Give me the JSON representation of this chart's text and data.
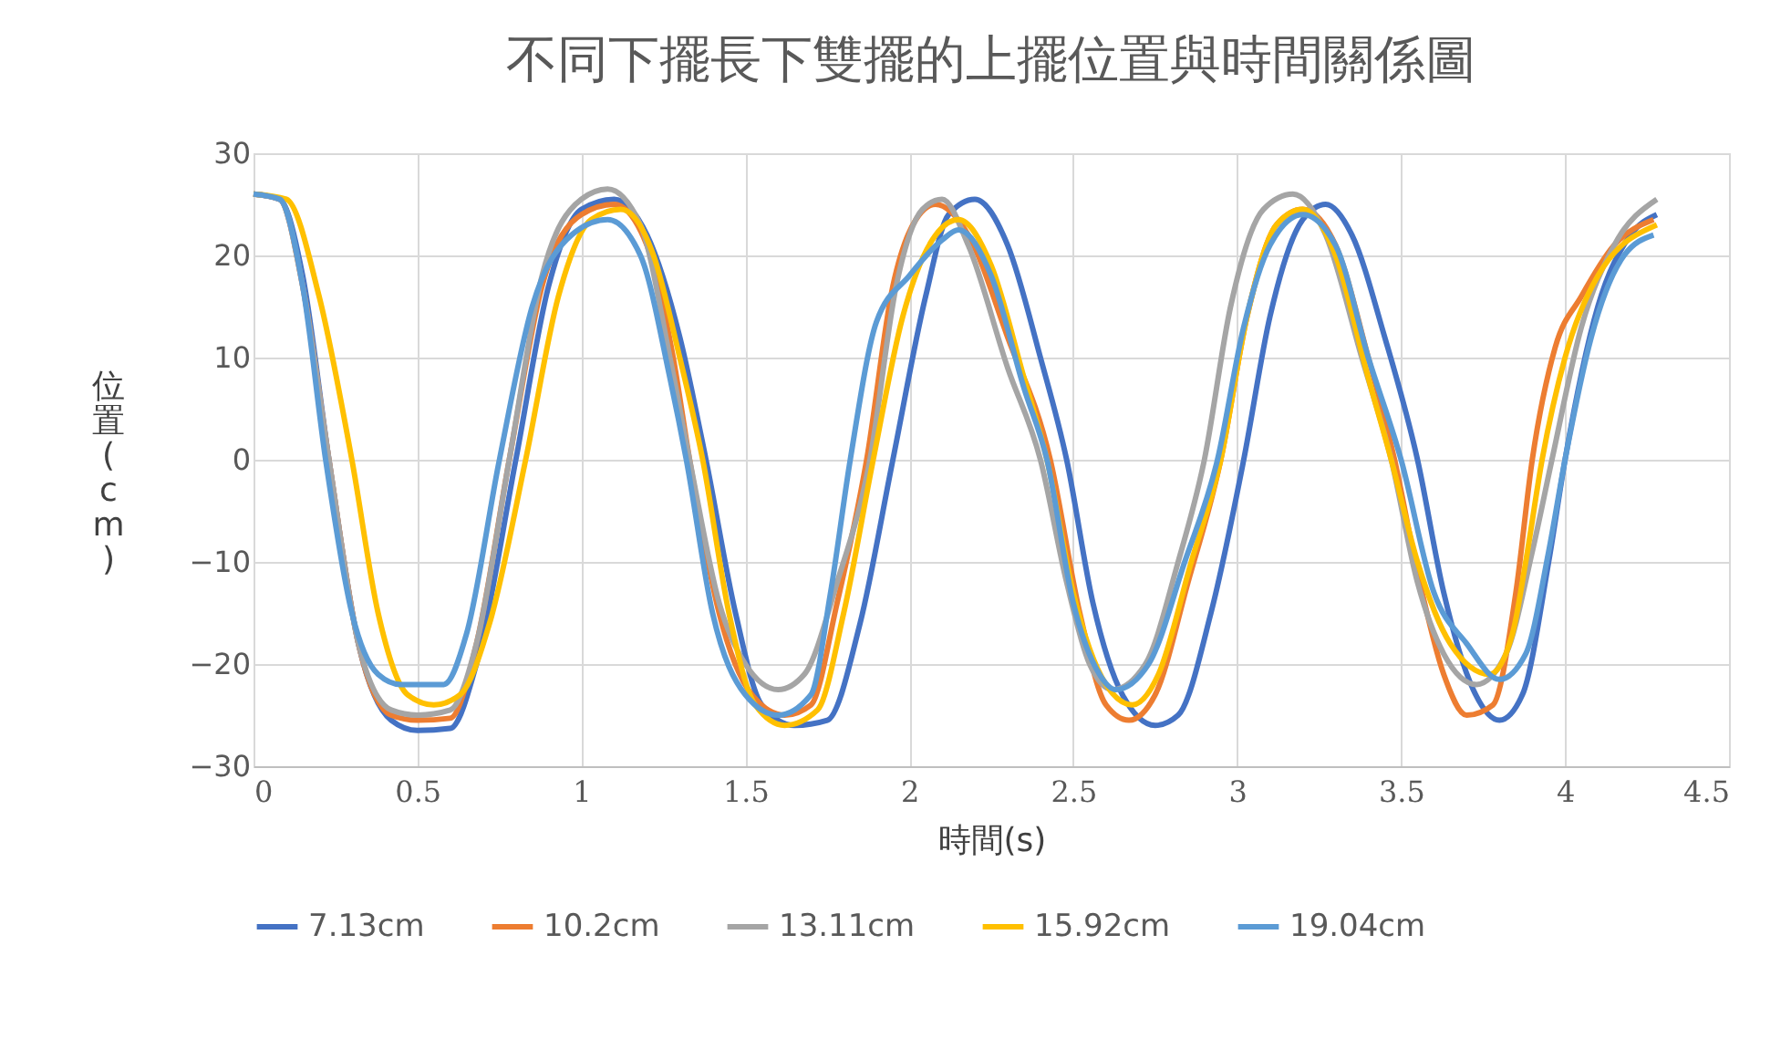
{
  "chart_data": {
    "type": "line",
    "title": "不同下擺長下雙擺的上擺位置與時間關係圖",
    "xlabel": "時間(s)",
    "ylabel": "位置(cm)",
    "xlim": [
      0,
      4.5
    ],
    "xticks": [
      0,
      0.5,
      1,
      1.5,
      2,
      2.5,
      3,
      3.5,
      4,
      4.5
    ],
    "ylim": [
      -30,
      30
    ],
    "yticks": [
      -30,
      -20,
      -10,
      0,
      10,
      20,
      30
    ],
    "grid": true,
    "legend": "bottom",
    "series": [
      {
        "name": "7.13cm",
        "color": "#4472c4",
        "x": [
          0,
          0.08,
          0.15,
          0.23,
          0.32,
          0.42,
          0.5,
          0.6,
          0.68,
          0.8,
          0.9,
          1.0,
          1.1,
          1.2,
          1.3,
          1.38,
          1.47,
          1.55,
          1.65,
          1.75,
          1.85,
          1.95,
          2.05,
          2.12,
          2.2,
          2.3,
          2.4,
          2.48,
          2.56,
          2.65,
          2.75,
          2.82,
          2.92,
          3.02,
          3.1,
          3.2,
          3.27,
          3.35,
          3.45,
          3.55,
          3.63,
          3.72,
          3.8,
          3.87,
          3.95,
          4.0,
          4.1,
          4.2,
          4.28
        ],
        "values": [
          26,
          25.5,
          18,
          0,
          -18,
          -25.5,
          -26.5,
          -26.3,
          -20,
          0,
          17,
          24.5,
          25.5,
          22,
          12,
          0,
          -15,
          -24,
          -26,
          -25.5,
          -16,
          0,
          16,
          24,
          25.5,
          21,
          10,
          0,
          -14,
          -23,
          -26,
          -25,
          -15,
          0,
          14,
          23.5,
          25,
          22,
          12,
          0,
          -13,
          -22.5,
          -25.5,
          -23,
          -10,
          0,
          15,
          22,
          24
        ]
      },
      {
        "name": "10.2cm",
        "color": "#ed7d31",
        "x": [
          0,
          0.08,
          0.15,
          0.23,
          0.32,
          0.42,
          0.5,
          0.6,
          0.68,
          0.78,
          0.88,
          1.0,
          1.1,
          1.2,
          1.28,
          1.33,
          1.42,
          1.52,
          1.62,
          1.7,
          1.78,
          1.87,
          1.95,
          2.02,
          2.08,
          2.18,
          2.3,
          2.43,
          2.52,
          2.6,
          2.67,
          2.75,
          2.85,
          2.95,
          3.03,
          3.12,
          3.2,
          3.3,
          3.4,
          3.48,
          3.55,
          3.63,
          3.7,
          3.78,
          3.85,
          3.9,
          3.97,
          4.05,
          4.15,
          4.27
        ],
        "values": [
          26,
          25.5,
          17,
          0,
          -18,
          -25,
          -25.5,
          -25.3,
          -18,
          0,
          17,
          24,
          25,
          21,
          10,
          0,
          -15,
          -23,
          -25,
          -24,
          -14,
          0,
          17,
          23.5,
          25,
          22,
          12,
          0,
          -15,
          -24,
          -25.5,
          -23,
          -12,
          0,
          14,
          23,
          24.5,
          21,
          10,
          0,
          -11,
          -21,
          -25,
          -24,
          -13,
          0,
          11,
          16,
          21,
          23.5
        ]
      },
      {
        "name": "13.11cm",
        "color": "#a5a5a5",
        "x": [
          0,
          0.08,
          0.15,
          0.23,
          0.32,
          0.42,
          0.5,
          0.6,
          0.68,
          0.78,
          0.88,
          1.0,
          1.08,
          1.18,
          1.27,
          1.33,
          1.42,
          1.5,
          1.6,
          1.68,
          1.78,
          1.88,
          1.96,
          2.04,
          2.1,
          2.18,
          2.3,
          2.4,
          2.48,
          2.55,
          2.62,
          2.72,
          2.82,
          2.9,
          2.98,
          3.08,
          3.17,
          3.27,
          3.38,
          3.47,
          3.55,
          3.63,
          3.73,
          3.82,
          3.9,
          3.96,
          4.05,
          4.15,
          4.28
        ],
        "values": [
          26,
          25.5,
          17,
          0,
          -18,
          -24.5,
          -25,
          -24.5,
          -18,
          0,
          18,
          25.5,
          26.5,
          23,
          10,
          0,
          -14,
          -20,
          -22.5,
          -21,
          -12,
          0,
          17,
          24.5,
          25.5,
          21,
          9,
          0,
          -12,
          -20,
          -22.5,
          -20,
          -10,
          0,
          15,
          24.5,
          26,
          22,
          10,
          0,
          -12,
          -19,
          -22,
          -19,
          -9,
          0,
          13,
          21,
          25.5
        ]
      },
      {
        "name": "15.92cm",
        "color": "#ffc000",
        "x": [
          0,
          0.1,
          0.2,
          0.3,
          0.38,
          0.47,
          0.55,
          0.63,
          0.72,
          0.83,
          0.93,
          1.03,
          1.12,
          1.22,
          1.3,
          1.37,
          1.45,
          1.53,
          1.62,
          1.72,
          1.8,
          1.89,
          1.98,
          2.07,
          2.15,
          2.25,
          2.35,
          2.42,
          2.5,
          2.6,
          2.68,
          2.76,
          2.86,
          2.95,
          3.03,
          3.12,
          3.2,
          3.3,
          3.4,
          3.47,
          3.55,
          3.65,
          3.77,
          3.84,
          3.88,
          3.93,
          4.0,
          4.1,
          4.28
        ],
        "values": [
          26,
          25.5,
          16,
          0,
          -15,
          -23,
          -24,
          -23,
          -16,
          0,
          16,
          23.5,
          24.5,
          20,
          10,
          0,
          -15,
          -24,
          -26,
          -24.5,
          -15,
          0,
          14,
          21.5,
          23.5,
          19,
          8,
          0,
          -13,
          -22,
          -24,
          -21,
          -10,
          0,
          14,
          23,
          24.5,
          20,
          8,
          0,
          -10,
          -18,
          -21,
          -17,
          -10,
          0,
          10,
          18,
          23
        ]
      },
      {
        "name": "19.04cm",
        "color": "#5b9bd5",
        "x": [
          0,
          0.08,
          0.15,
          0.22,
          0.3,
          0.38,
          0.45,
          0.58,
          0.65,
          0.75,
          0.85,
          0.97,
          1.08,
          1.18,
          1.27,
          1.32,
          1.4,
          1.5,
          1.6,
          1.7,
          1.76,
          1.82,
          1.9,
          2.0,
          2.1,
          2.15,
          2.25,
          2.35,
          2.42,
          2.5,
          2.58,
          2.63,
          2.73,
          2.84,
          2.94,
          3.02,
          3.1,
          3.2,
          3.3,
          3.4,
          3.5,
          3.6,
          3.7,
          3.8,
          3.88,
          3.95,
          4.0,
          4.08,
          4.18,
          4.27
        ],
        "values": [
          26,
          25.5,
          17,
          0,
          -15,
          -21,
          -22,
          -22,
          -17,
          0,
          15,
          22,
          23.5,
          20,
          8,
          0,
          -15,
          -23,
          -25,
          -23,
          -13,
          0,
          13.5,
          18,
          21.5,
          22.5,
          18,
          7,
          0,
          -14,
          -21,
          -22.5,
          -20,
          -10,
          0,
          13,
          21,
          24,
          21,
          10,
          0,
          -13,
          -18,
          -21.5,
          -19,
          -9,
          0,
          12,
          20,
          22
        ]
      }
    ]
  }
}
